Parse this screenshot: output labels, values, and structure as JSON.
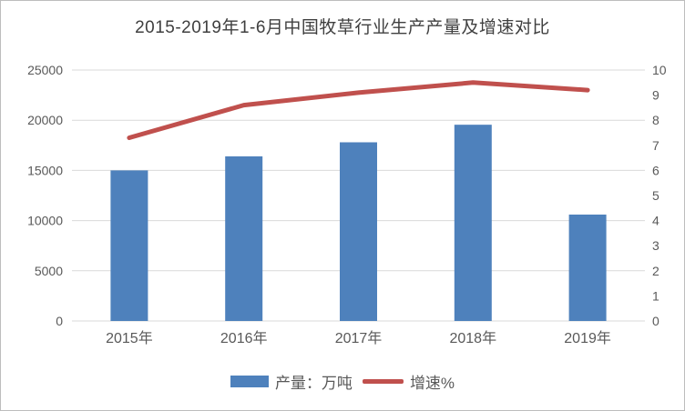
{
  "chart_data": {
    "type": "combo-bar-line",
    "title": "2015-2019年1-6月中国牧草行业生产产量及增速对比",
    "categories": [
      "2015年",
      "2016年",
      "2017年",
      "2018年",
      "2019年"
    ],
    "series": [
      {
        "name": "产量：万吨",
        "type": "bar",
        "axis": "left",
        "color": "#4e81bc",
        "values": [
          15000,
          16400,
          17800,
          19550,
          10600
        ]
      },
      {
        "name": "增速%",
        "type": "line",
        "axis": "right",
        "color": "#c0504d",
        "values": [
          7.3,
          8.6,
          9.1,
          9.5,
          9.2
        ]
      }
    ],
    "left_axis": {
      "min": 0,
      "max": 25000,
      "step": 5000,
      "tick_labels": [
        "0",
        "5000",
        "10000",
        "15000",
        "20000",
        "25000"
      ]
    },
    "right_axis": {
      "min": 0,
      "max": 10,
      "step": 1,
      "tick_labels": [
        "0",
        "1",
        "2",
        "3",
        "4",
        "5",
        "6",
        "7",
        "8",
        "9",
        "10"
      ]
    },
    "legend_position": "bottom",
    "grid": "horizontal-on-left-axis-steps",
    "colors": {
      "bar": "#4e81bc",
      "line": "#c0504d",
      "grid": "#d9d9d9",
      "axis_text": "#595959",
      "title_text": "#3f3f3f",
      "background": "#ffffff",
      "border": "#bdbdbd"
    }
  }
}
